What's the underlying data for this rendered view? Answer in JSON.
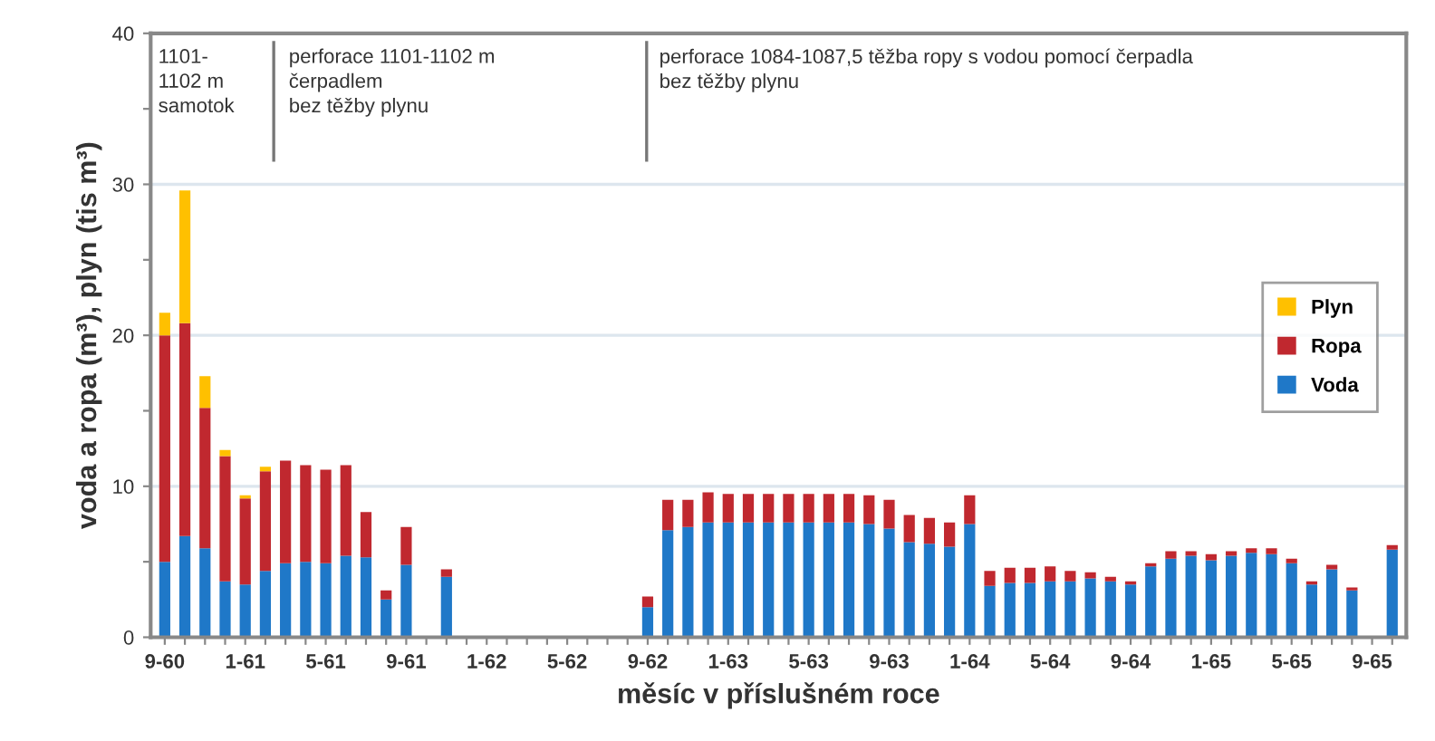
{
  "chart_data": {
    "type": "bar",
    "stacked": true,
    "xlabel": "měsíc v příslušném roce",
    "ylabel": "voda a ropa (m³), plyn (tis m³)",
    "categories": [
      "9-60",
      null,
      null,
      null,
      "1-61",
      null,
      null,
      null,
      "5-61",
      null,
      null,
      null,
      "9-61",
      null,
      null,
      null,
      "1-62",
      null,
      null,
      null,
      "5-62",
      null,
      null,
      null,
      "9-62",
      null,
      null,
      null,
      "1-63",
      null,
      null,
      null,
      "5-63",
      null,
      null,
      null,
      "9-63",
      null,
      null,
      null,
      "1-64",
      null,
      null,
      null,
      "5-64",
      null,
      null,
      null,
      "9-64",
      null,
      null,
      null,
      "1-65",
      null,
      null,
      null,
      "5-65",
      null,
      null,
      null,
      "9-65",
      null
    ],
    "series": [
      {
        "name": "Voda",
        "color": "#1f78c8",
        "values": [
          5.0,
          6.7,
          5.9,
          3.7,
          3.5,
          4.4,
          4.9,
          5.0,
          4.9,
          5.4,
          5.3,
          2.5,
          4.8,
          null,
          4.0,
          null,
          null,
          null,
          null,
          null,
          null,
          null,
          null,
          null,
          2.0,
          7.1,
          7.3,
          7.6,
          7.6,
          7.6,
          7.6,
          7.6,
          7.6,
          7.6,
          7.6,
          7.5,
          7.2,
          6.3,
          6.2,
          6.0,
          7.5,
          3.4,
          3.6,
          3.6,
          3.7,
          3.7,
          3.9,
          3.7,
          3.5,
          4.7,
          5.2,
          5.4,
          5.1,
          5.4,
          5.6,
          5.5,
          4.9,
          3.5,
          4.5,
          3.1,
          null,
          5.8
        ]
      },
      {
        "name": "Ropa",
        "color": "#c0282f",
        "values": [
          15.0,
          14.1,
          9.3,
          8.3,
          5.7,
          6.6,
          6.8,
          6.4,
          6.2,
          6.0,
          3.0,
          0.6,
          2.5,
          null,
          0.5,
          null,
          null,
          null,
          null,
          null,
          null,
          null,
          null,
          null,
          0.7,
          2.0,
          1.8,
          2.0,
          1.9,
          1.9,
          1.9,
          1.9,
          1.9,
          1.9,
          1.9,
          1.9,
          1.9,
          1.8,
          1.7,
          1.6,
          1.9,
          1.0,
          1.0,
          1.0,
          1.0,
          0.7,
          0.4,
          0.3,
          0.2,
          0.2,
          0.5,
          0.3,
          0.4,
          0.3,
          0.3,
          0.4,
          0.3,
          0.2,
          0.3,
          0.2,
          null,
          0.3
        ]
      },
      {
        "name": "Plyn",
        "color": "#ffc000",
        "values": [
          1.5,
          8.8,
          2.1,
          0.4,
          0.2,
          0.3,
          null,
          null,
          null,
          null,
          null,
          null,
          null,
          null,
          null,
          null,
          null,
          null,
          null,
          null,
          null,
          null,
          null,
          null,
          null,
          null,
          null,
          null,
          null,
          null,
          null,
          null,
          null,
          null,
          null,
          null,
          null,
          null,
          null,
          null,
          null,
          null,
          null,
          null,
          null,
          null,
          null,
          null,
          null,
          null,
          null,
          null,
          null,
          null,
          null,
          null,
          null,
          null,
          null,
          null,
          null,
          null
        ]
      }
    ],
    "ylim": [
      0,
      40
    ],
    "yticks": [
      0,
      {
        "value": 5,
        "label": null
      },
      10,
      {
        "value": 15,
        "label": null
      },
      20,
      {
        "value": 25,
        "label": null
      },
      30,
      {
        "value": 35,
        "label": null
      },
      40
    ],
    "grid": "y",
    "legend": "right",
    "annotations": [
      "1101-\n1102 m\nsamotok",
      "perforace 1101-1102 m\nčerpadlem\nbez těžby plynu",
      "perforace 1084-1087,5 těžba ropy s vodou pomocí čerpadla\nbez těžby plynu"
    ]
  }
}
